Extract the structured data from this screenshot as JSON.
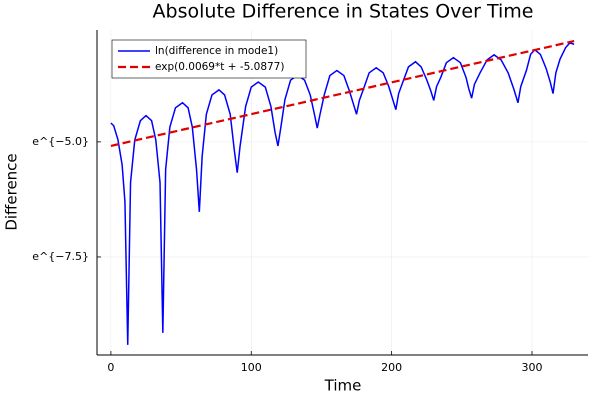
{
  "chart_data": {
    "type": "line",
    "title": "Absolute Difference in States Over Time",
    "xlabel": "Time",
    "ylabel": "Difference",
    "xlim": [
      -9.9,
      339.9
    ],
    "xticks": [
      0,
      100,
      200,
      300
    ],
    "ylim": [
      -9.63,
      -2.57
    ],
    "yticks": [
      {
        "value": -7.5,
        "label": "e^{−7.5}"
      },
      {
        "value": -5.0,
        "label": "e^{−5.0}"
      }
    ],
    "grid": true,
    "legend": "upper left",
    "series": [
      {
        "name": "ln(difference in mode1)",
        "color": "#0000ff",
        "style": "solid",
        "x": [
          0,
          2,
          5,
          8,
          10,
          12,
          14,
          17,
          21,
          25,
          29,
          32,
          35,
          37,
          39,
          42,
          46,
          51,
          55,
          58,
          61,
          63,
          65,
          68,
          72,
          77,
          81,
          85,
          88,
          90,
          92,
          96,
          100,
          105,
          110,
          114,
          117,
          119,
          121,
          124,
          128,
          133,
          138,
          142,
          145,
          147,
          149,
          152,
          156,
          161,
          166,
          170,
          173,
          175,
          177,
          180,
          184,
          189,
          194,
          198,
          201,
          203,
          205,
          208,
          212,
          217,
          221,
          225,
          228,
          230,
          232,
          235,
          239,
          244,
          249,
          253,
          255,
          257,
          259,
          263,
          268,
          273,
          278,
          283,
          287,
          290,
          292,
          296,
          299,
          302,
          306,
          310,
          313,
          315,
          317,
          320,
          324,
          327,
          330
        ],
        "values": [
          -4.59,
          -4.65,
          -4.95,
          -5.5,
          -6.3,
          -9.41,
          -5.88,
          -4.96,
          -4.54,
          -4.43,
          -4.54,
          -4.96,
          -5.88,
          -9.15,
          -5.6,
          -4.68,
          -4.26,
          -4.15,
          -4.26,
          -4.68,
          -5.6,
          -6.52,
          -5.32,
          -4.4,
          -3.98,
          -3.87,
          -3.98,
          -4.4,
          -5.2,
          -5.67,
          -5.1,
          -4.23,
          -3.81,
          -3.7,
          -3.81,
          -4.23,
          -4.8,
          -5.09,
          -4.7,
          -4.08,
          -3.66,
          -3.55,
          -3.66,
          -3.98,
          -4.4,
          -4.7,
          -4.4,
          -3.98,
          -3.56,
          -3.45,
          -3.56,
          -3.9,
          -4.2,
          -4.4,
          -4.1,
          -3.85,
          -3.5,
          -3.39,
          -3.5,
          -3.8,
          -4.1,
          -4.3,
          -3.95,
          -3.7,
          -3.37,
          -3.26,
          -3.37,
          -3.65,
          -3.9,
          -4.1,
          -3.8,
          -3.6,
          -3.28,
          -3.17,
          -3.28,
          -3.6,
          -3.85,
          -4.05,
          -3.75,
          -3.5,
          -3.22,
          -3.11,
          -3.22,
          -3.5,
          -3.85,
          -4.15,
          -3.8,
          -3.45,
          -3.1,
          -3.0,
          -3.1,
          -3.4,
          -3.7,
          -3.95,
          -3.5,
          -3.2,
          -2.95,
          -2.85,
          -2.88
        ]
      },
      {
        "name": "exp(0.0069*t + -5.0877)",
        "color": "#e00000",
        "style": "dashed",
        "x": [
          0,
          330
        ],
        "values": [
          -5.0877,
          -2.8107
        ]
      }
    ]
  }
}
